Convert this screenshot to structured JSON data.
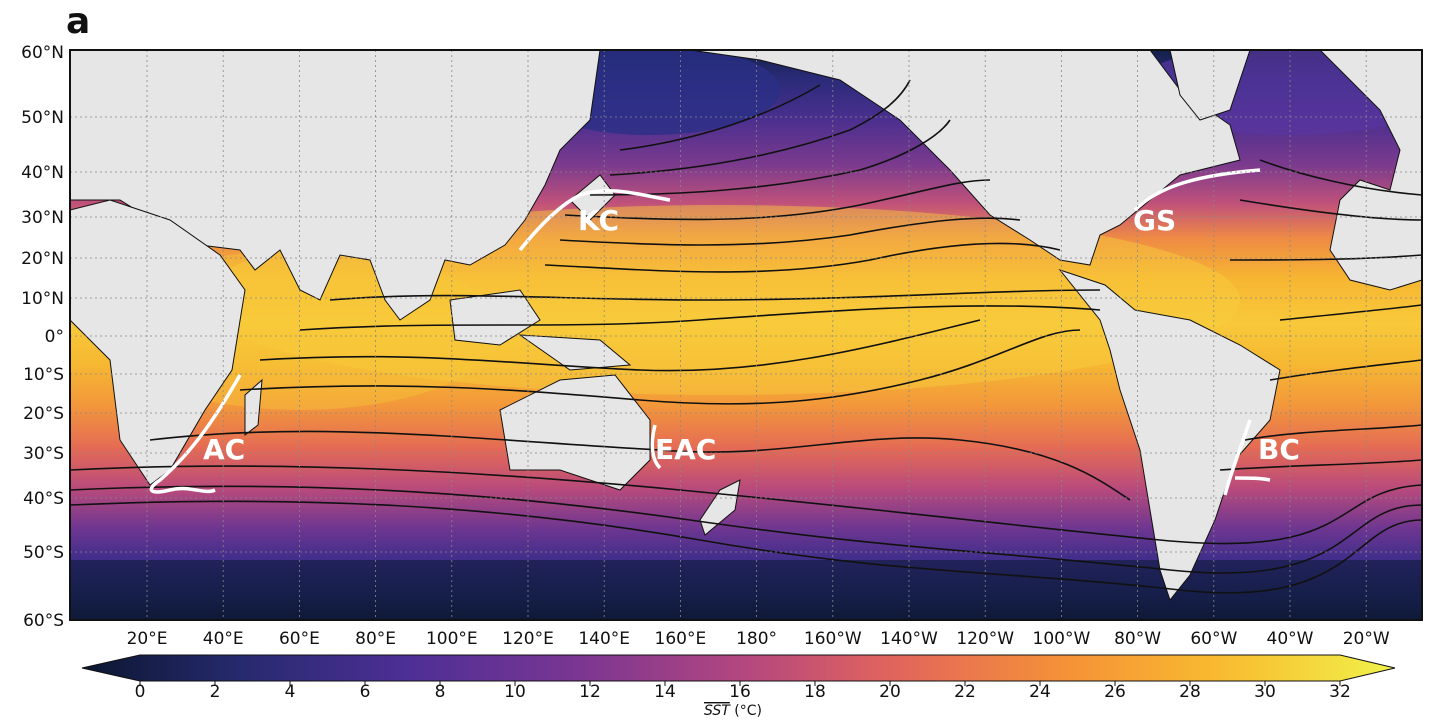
{
  "panel_label": "a",
  "map": {
    "lat_labels": [
      "60°N",
      "50°N",
      "40°N",
      "30°N",
      "20°N",
      "10°N",
      "0°",
      "10°S",
      "20°S",
      "30°S",
      "40°S",
      "50°S",
      "60°S"
    ],
    "lon_labels": [
      "20°E",
      "40°E",
      "60°E",
      "80°E",
      "100°E",
      "120°E",
      "140°E",
      "160°E",
      "180°",
      "160°W",
      "140°W",
      "120°W",
      "100°W",
      "80°W",
      "60°W",
      "40°W",
      "20°W"
    ],
    "current_labels": [
      "KC",
      "GS",
      "AC",
      "EAC",
      "BC"
    ],
    "colors": {
      "land": "#e6e6e6",
      "cold": "#0d1b3e",
      "mid": "#a33f84",
      "warm": "#f59a2c",
      "hot": "#f5e33c"
    }
  },
  "colorbar": {
    "ticks": [
      "0",
      "2",
      "4",
      "6",
      "8",
      "10",
      "12",
      "14",
      "16",
      "18",
      "20",
      "22",
      "24",
      "26",
      "28",
      "30",
      "32"
    ],
    "label_main": "SST",
    "label_unit": " (°C)"
  }
}
